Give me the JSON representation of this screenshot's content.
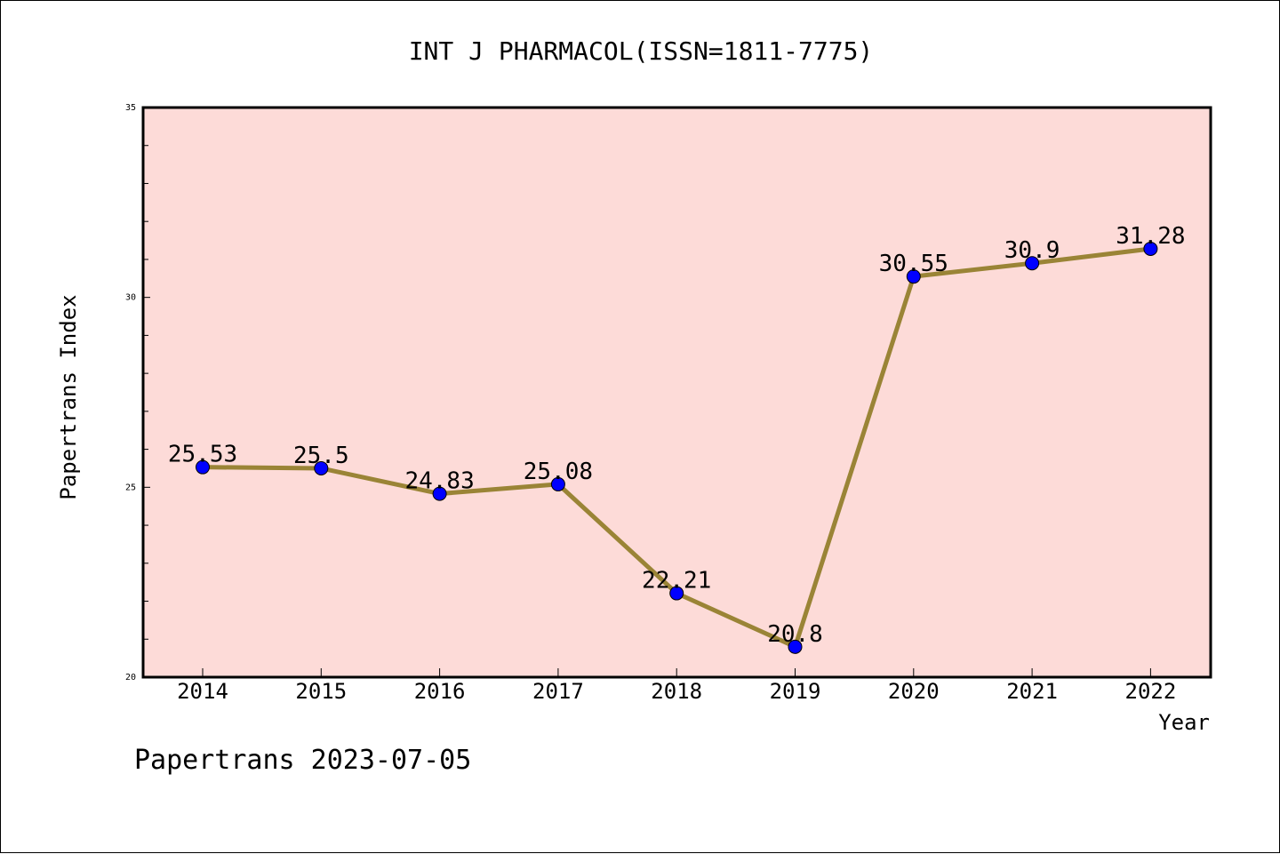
{
  "chart_data": {
    "type": "line",
    "title": "INT J PHARMACOL(ISSN=1811-7775)",
    "xlabel": "Year",
    "ylabel": "Papertrans Index",
    "categories": [
      "2014",
      "2015",
      "2016",
      "2017",
      "2018",
      "2019",
      "2020",
      "2021",
      "2022"
    ],
    "series": [
      {
        "values": [
          25.53,
          25.5,
          24.83,
          25.08,
          22.21,
          20.8,
          30.55,
          30.9,
          31.28
        ]
      }
    ],
    "data_labels": [
      "25.53",
      "25.5",
      "24.83",
      "25.08",
      "22.21",
      "20.8",
      "30.55",
      "30.9",
      "31.28"
    ],
    "ylim": [
      20,
      35
    ],
    "yticks": [
      "20",
      "25",
      "30",
      "35"
    ],
    "grid": false,
    "legend": "none",
    "colors": {
      "plot_background": "#fddbd8",
      "line": "#9a8436",
      "marker": "#0000ff"
    }
  },
  "footer": "Papertrans 2023-07-05"
}
